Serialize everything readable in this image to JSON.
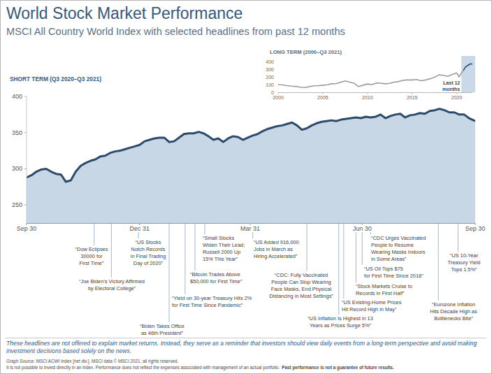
{
  "title": "World Stock Market Performance",
  "subtitle": "MSCI All Country World Index with selected headlines from past 12 months",
  "chart_data": [
    {
      "type": "area",
      "title": "SHORT TERM (Q3 2020–Q3 2021)",
      "color": "#2c4a6b",
      "x": [
        0,
        4,
        8,
        12,
        16,
        20,
        24,
        28,
        32,
        36,
        40,
        44,
        48,
        52,
        56,
        60,
        64,
        68,
        72,
        76,
        80,
        84,
        88,
        92,
        96,
        100,
        104,
        108,
        112,
        116,
        120,
        124,
        128,
        132,
        136,
        140,
        144,
        148,
        152,
        156,
        160,
        164,
        168,
        172,
        176,
        180,
        184,
        188,
        192,
        196,
        200,
        204,
        208,
        212,
        216,
        220,
        224,
        228,
        232,
        236,
        240,
        244,
        248,
        252,
        256,
        260,
        264,
        268,
        272,
        276,
        280,
        284,
        288,
        292,
        296,
        300,
        304,
        308,
        312,
        316,
        320,
        324,
        328,
        332,
        336,
        340,
        344,
        348,
        352,
        356,
        360,
        365
      ],
      "values": [
        288,
        291,
        296,
        299,
        300,
        296,
        293,
        292,
        282,
        284,
        296,
        304,
        308,
        311,
        313,
        317,
        318,
        322,
        324,
        325,
        327,
        329,
        331,
        333,
        338,
        340,
        342,
        343,
        343,
        337,
        338,
        343,
        348,
        349,
        349,
        351,
        349,
        345,
        340,
        342,
        337,
        342,
        345,
        344,
        340,
        343,
        346,
        348,
        352,
        355,
        357,
        359,
        360,
        362,
        364,
        360,
        354,
        356,
        360,
        363,
        365,
        366,
        367,
        366,
        368,
        369,
        370,
        371,
        370,
        372,
        371,
        372,
        375,
        370,
        373,
        375,
        376,
        371,
        374,
        375,
        377,
        376,
        380,
        381,
        383,
        381,
        378,
        378,
        375,
        375,
        370,
        366
      ],
      "xlim": [
        0,
        365
      ],
      "xticks": [
        {
          "value": 0,
          "label": "Sep 30"
        },
        {
          "value": 92,
          "label": "Dec 31"
        },
        {
          "value": 182,
          "label": "Mar 31"
        },
        {
          "value": 273,
          "label": "Jun 30"
        },
        {
          "value": 365,
          "label": "Sep 30"
        }
      ],
      "ylim": [
        225,
        400
      ],
      "yticks": [
        250,
        300,
        350,
        400
      ],
      "grid": false,
      "annotations": [
        {
          "x": 55,
          "lines": [
            "“Dow Eclipses",
            "30000 for",
            "First Time”"
          ]
        },
        {
          "x": 69,
          "lines": [
            "“Joe Biden's Victory Affirmed",
            "by Electoral College”"
          ]
        },
        {
          "x": 91,
          "lines": [
            "“US Stocks",
            "Notch Records",
            "in Final Trading",
            "Day of 2020”"
          ]
        },
        {
          "x": 116,
          "lines": [
            "“Biden Takes Office",
            "as 46th President”"
          ]
        },
        {
          "x": 129,
          "lines": [
            "“Yield on 30-year Treasury Hits 2%",
            "for First Time Since Pandemic”"
          ]
        },
        {
          "x": 137,
          "lines": [
            "“Bitcoin Trades Above",
            "$50,000 for First Time”"
          ]
        },
        {
          "x": 145,
          "lines": [
            "“Small Stocks",
            "Widen Their Lead;",
            "Russell 2000 Up",
            "15% This Year”"
          ]
        },
        {
          "x": 184,
          "lines": [
            "“US Added 916,000",
            "Jobs in March as",
            "Hiring Accelerated”"
          ]
        },
        {
          "x": 228,
          "lines": [
            "“CDC: Fully Vaccinated",
            "People Can Stop Wearing",
            "Face Masks, End Physical",
            "Distancing in Most Settings”"
          ]
        },
        {
          "x": 254,
          "lines": [
            "“US Inflation Is Highest in 13",
            "Years as Prices Surge 5%”"
          ]
        },
        {
          "x": 258,
          "lines": [
            "“US Existing-Home Prices",
            "Hit Record High in May”"
          ]
        },
        {
          "x": 268,
          "lines": [
            "“Stock Markets Cruise to",
            "Records in First Half”"
          ]
        },
        {
          "x": 273,
          "lines": [
            "“US Oil Tops $75",
            "for First Time Since 2018”"
          ]
        },
        {
          "x": 280,
          "lines": [
            "“CDC Urges Vaccinated",
            "People to Resume",
            "Wearing Masks Indoors",
            "in Some Areas”"
          ]
        },
        {
          "x": 335,
          "lines": [
            "“Eurozone Inflation",
            "Hits Decade High as",
            "Bottlenecks Bite”"
          ]
        },
        {
          "x": 351,
          "lines": [
            "“US 10-Year",
            "Treasury Yield",
            "Tops 1.5%”"
          ]
        }
      ]
    },
    {
      "type": "line",
      "title": "LONG TERM (2000–Q3 2021)",
      "color": "#9c9c9c",
      "x": [
        2000,
        2000.5,
        2001,
        2001.5,
        2002,
        2002.5,
        2003,
        2003.5,
        2004,
        2004.5,
        2005,
        2005.5,
        2006,
        2006.5,
        2007,
        2007.5,
        2008,
        2008.5,
        2009,
        2009.5,
        2010,
        2010.5,
        2011,
        2011.5,
        2012,
        2012.5,
        2013,
        2013.5,
        2014,
        2014.5,
        2015,
        2015.5,
        2016,
        2016.5,
        2017,
        2017.5,
        2018,
        2018.5,
        2019,
        2019.5,
        2020,
        2020.25,
        2020.5,
        2020.75,
        2021,
        2021.25,
        2021.5,
        2021.75
      ],
      "values": [
        100,
        96,
        86,
        80,
        76,
        66,
        62,
        74,
        84,
        86,
        92,
        98,
        110,
        114,
        130,
        148,
        132,
        118,
        74,
        92,
        108,
        100,
        120,
        118,
        110,
        116,
        132,
        140,
        156,
        162,
        160,
        166,
        150,
        160,
        176,
        196,
        226,
        220,
        206,
        232,
        252,
        200,
        248,
        288,
        333,
        350,
        370,
        366
      ],
      "xlim": [
        2000,
        2021.75
      ],
      "xticks": [
        2000,
        2005,
        2010,
        2015,
        2020
      ],
      "ylim": [
        0,
        400
      ],
      "yticks": [
        0,
        100,
        200,
        300,
        400
      ],
      "grid": false,
      "highlight": {
        "range": [
          2020.75,
          2021.75
        ],
        "label": "Last 12 months",
        "color": "#2c4a6b"
      }
    }
  ],
  "footer": {
    "note": [
      "These headlines are not offered to explain market returns. Instead, they serve as a reminder that investors should view daily events from a long-term perspective and avoid making",
      "investment decisions based solely on the news."
    ],
    "source": "Graph Source: MSCI ACWI Index [net div.]. MSCI data © MSCI 2021, all rights reserved.",
    "disclaimer": "It is not possible to invest directly in an index. Performance does not reflect the expenses associated with management of an actual portfolio.",
    "disclaimer_bold": "Past performance is not a guarantee of future results."
  }
}
